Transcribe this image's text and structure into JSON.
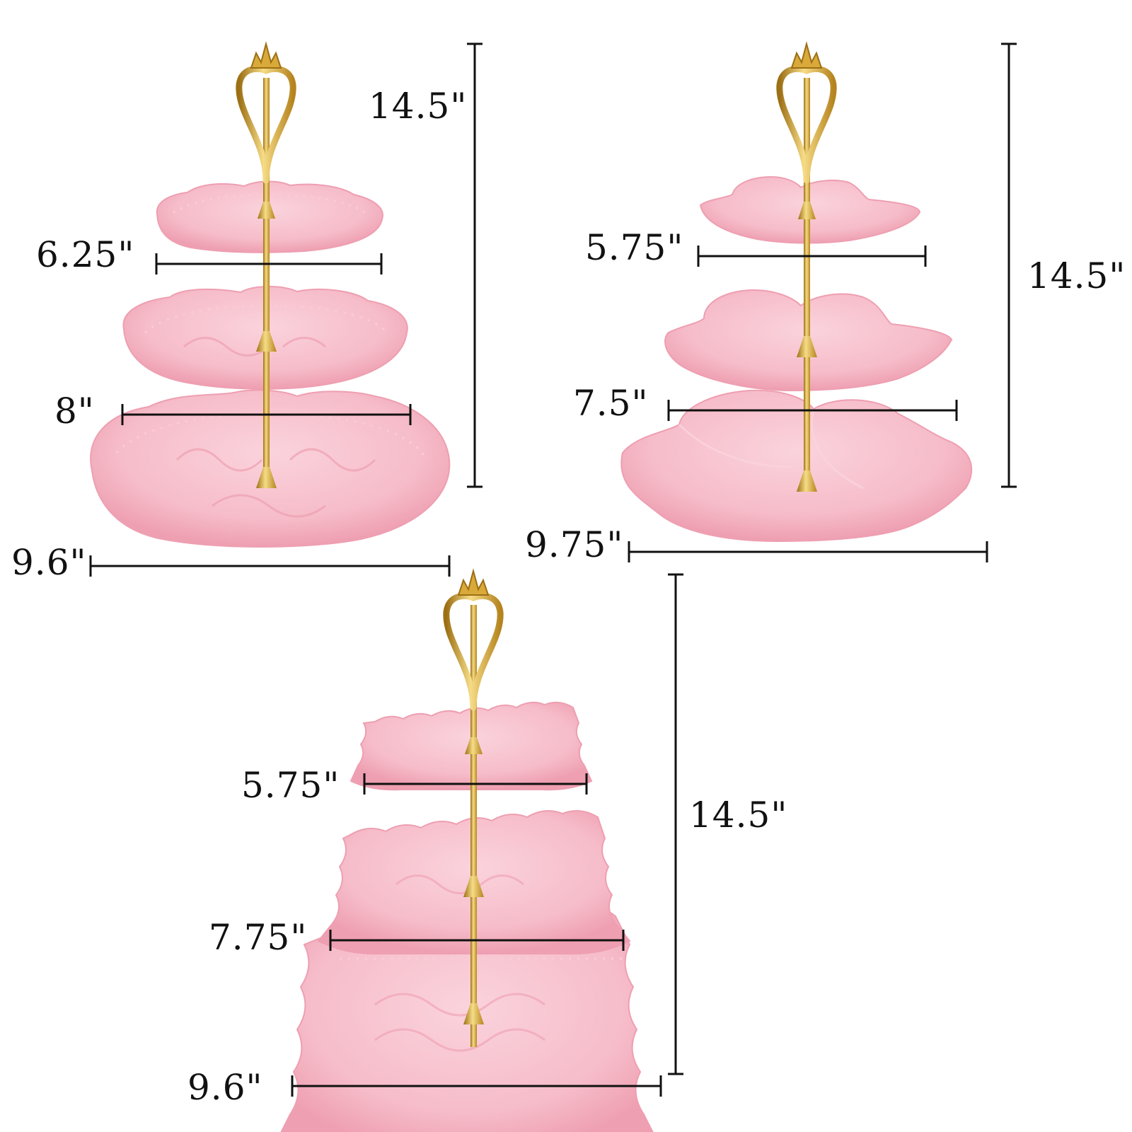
{
  "colors": {
    "plate": "#f6bcc9",
    "plate_shade": "#ee9fb1",
    "plate_emboss": "#f9ccd6",
    "gold": "#d9a93a",
    "gold_dark": "#9c6f14",
    "gold_light": "#f6dc86",
    "rule": "#111111"
  },
  "stands": {
    "round_lace": {
      "height": "14.5\"",
      "tier_top": "6.25\"",
      "tier_middle": "8\"",
      "tier_bottom": "9.6\""
    },
    "petal": {
      "height": "14.5\"",
      "tier_top": "5.75\"",
      "tier_middle": "7.5\"",
      "tier_bottom": "9.75\""
    },
    "square_lace": {
      "height": "14.5\"",
      "tier_top": "5.75\"",
      "tier_middle": "7.75\"",
      "tier_bottom": "9.6\""
    }
  }
}
